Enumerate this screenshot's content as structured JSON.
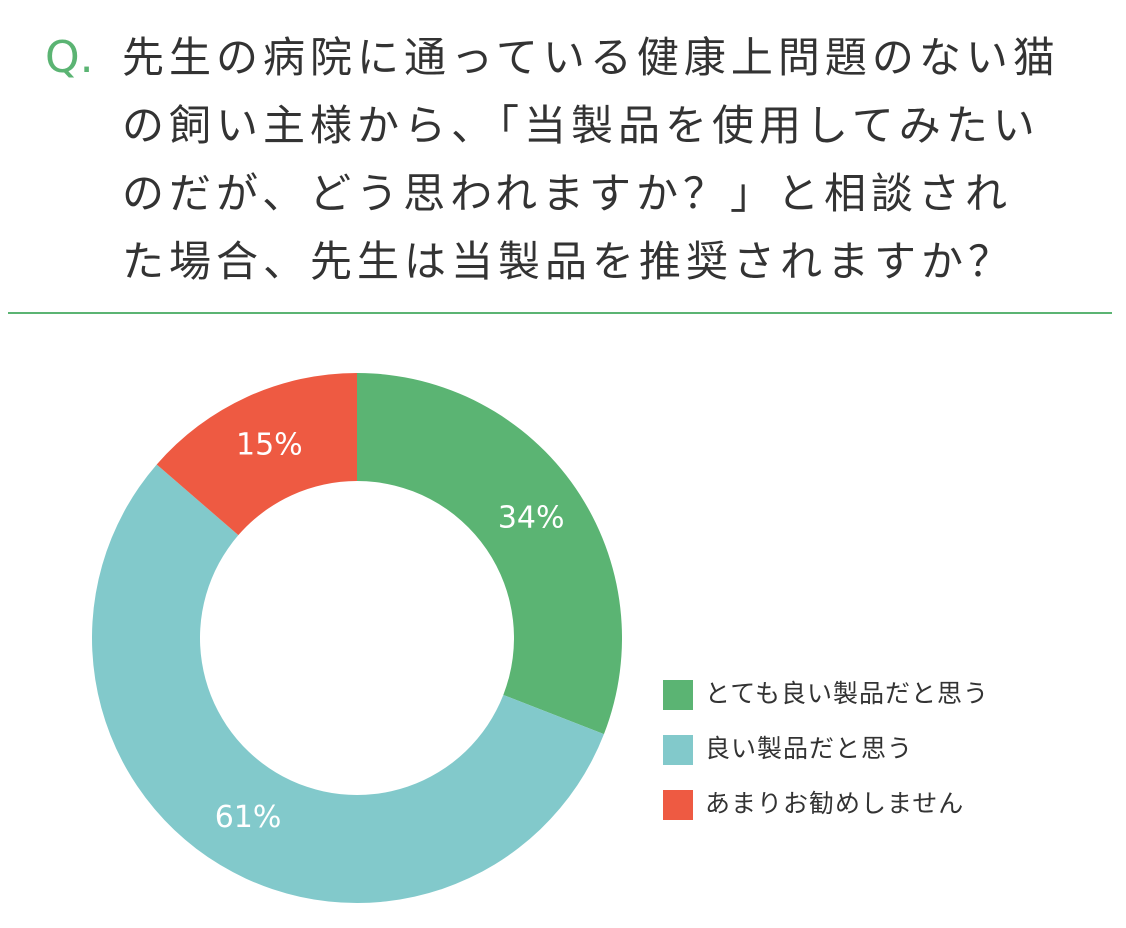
{
  "chart_data": {
    "type": "donut",
    "title_marker": "Q.",
    "title_lines": [
      "先生の病院に通っている健康上問題のない猫",
      "の飼い主様から、「当製品を使用してみたい",
      "のだが、どう思われますか？」と相談され",
      "た場合、先生は当製品を推奨されますか？"
    ],
    "categories": [
      "とても良い製品だと思う",
      "良い製品だと思う",
      "あまりお勧めしません"
    ],
    "values": [
      34,
      61,
      15
    ],
    "value_labels": [
      "34%",
      "61%",
      "15%"
    ],
    "colors": [
      "#5bb473",
      "#82c9cb",
      "#ee5a42"
    ],
    "legend": "right"
  }
}
